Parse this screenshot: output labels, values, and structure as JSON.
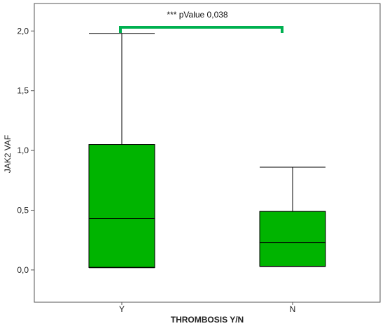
{
  "chart_data": {
    "type": "boxplot",
    "title": "",
    "xlabel": "THROMBOSIS Y/N",
    "ylabel": "JAK2 VAF",
    "categories": [
      "Y",
      "N"
    ],
    "boxes": [
      {
        "category": "Y",
        "whisker_low": 0.02,
        "q1": 0.02,
        "median": 0.43,
        "q3": 1.05,
        "whisker_high": 1.98
      },
      {
        "category": "N",
        "whisker_low": 0.03,
        "q1": 0.03,
        "median": 0.23,
        "q3": 0.49,
        "whisker_high": 0.86
      }
    ],
    "y_ticks": [
      {
        "value": 0.0,
        "label": "0,0"
      },
      {
        "value": 0.5,
        "label": "0,5"
      },
      {
        "value": 1.0,
        "label": "1,0"
      },
      {
        "value": 1.5,
        "label": "1,5"
      },
      {
        "value": 2.0,
        "label": "2,0"
      }
    ],
    "ylim": [
      -0.27,
      2.23
    ],
    "box_color": "#00b400",
    "significance": {
      "text": "*** pValue 0,038",
      "between": [
        "Y",
        "N"
      ],
      "color": "#00b050"
    },
    "grid": false,
    "legend": "none"
  }
}
